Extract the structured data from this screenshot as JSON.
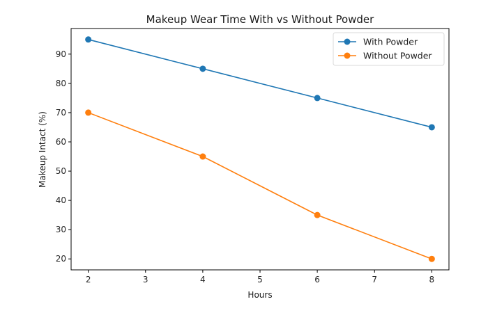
{
  "chart_data": {
    "type": "line",
    "title": "Makeup Wear Time With vs Without Powder",
    "xlabel": "Hours",
    "ylabel": "Makeup Intact (%)",
    "x": [
      2,
      4,
      6,
      8
    ],
    "series": [
      {
        "name": "With Powder",
        "values": [
          95,
          85,
          75,
          65
        ],
        "color": "#1f77b4",
        "marker": "circle"
      },
      {
        "name": "Without Powder",
        "values": [
          70,
          55,
          35,
          20
        ],
        "color": "#ff7f0e",
        "marker": "circle"
      }
    ],
    "xticks": [
      2,
      3,
      4,
      5,
      6,
      7,
      8
    ],
    "yticks": [
      20,
      30,
      40,
      50,
      60,
      70,
      80,
      90
    ],
    "xlim": [
      1.7,
      8.3
    ],
    "ylim": [
      16.25,
      98.75
    ],
    "grid": false,
    "legend_position": "upper right"
  }
}
